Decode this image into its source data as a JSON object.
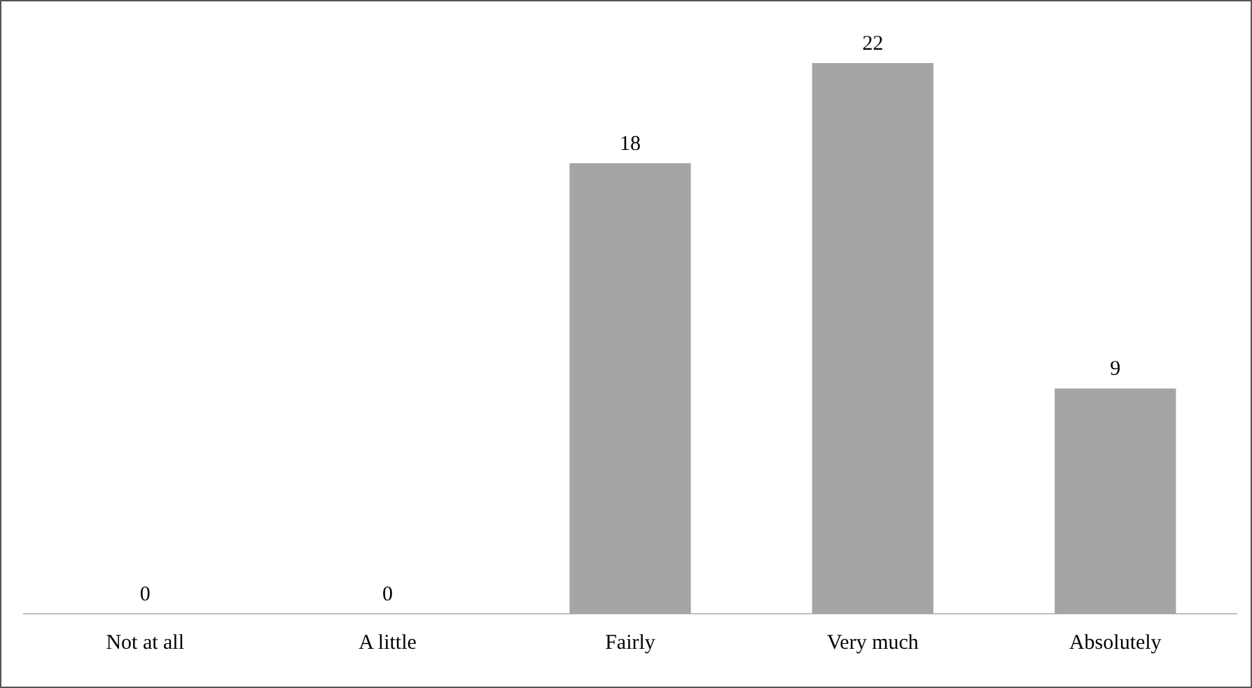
{
  "chart_data": {
    "type": "bar",
    "categories": [
      "Not at all",
      "A little",
      "Fairly",
      "Very much",
      "Absolutely"
    ],
    "values": [
      0,
      0,
      18,
      22,
      9
    ],
    "color": "#a5a5a5",
    "data_labels": true,
    "grid": false,
    "legend": false
  }
}
